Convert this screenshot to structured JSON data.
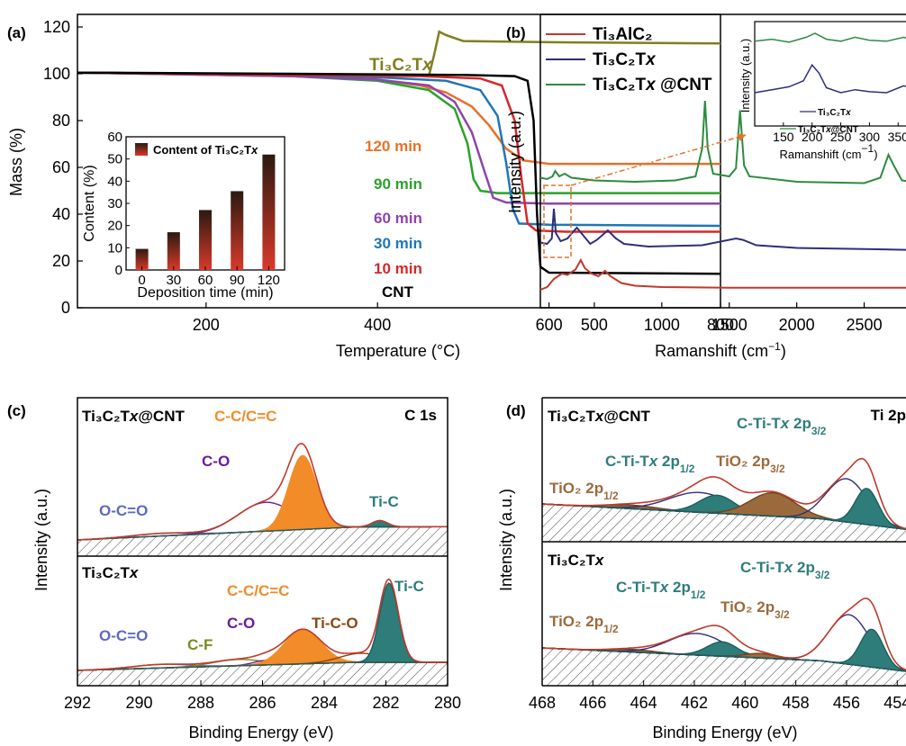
{
  "colors": {
    "ti3alc2": "#c0392b",
    "ti3c2tx": "#2e2f7a",
    "ti3c2tx_cnt": "#2e8b3e",
    "cnt": "#000000",
    "tga_ti3c2tx": "#7f7f1e",
    "m120": "#e8702a",
    "m90": "#2ca02c",
    "m60": "#8e44ad",
    "m30": "#1f77b4",
    "m10": "#d62728",
    "orange_fill": "#f28c28",
    "teal_fill": "#2e7d7a",
    "brown_fill": "#9b6a3c",
    "envelope": "#c0392b",
    "c_o": "#6a1b9a",
    "o_c_o": "#5c6bc0",
    "c_f": "#7a8a1e",
    "ti_c_o": "#8b4513"
  },
  "chart_data": [
    {
      "panel": "(a)",
      "type": "line",
      "xlabel": "Temperature (°C)",
      "ylabel": "Mass (%)",
      "xlim": [
        50,
        800
      ],
      "ylim": [
        0,
        120
      ],
      "xticks": [
        "200",
        "400",
        "600",
        "800"
      ],
      "yticks": [
        "0",
        "20",
        "40",
        "60",
        "80",
        "100",
        "120"
      ],
      "series": [
        {
          "name": "Ti3C2Tx",
          "label": "Ti₃C₂T",
          "label_italic": "x",
          "points": [
            [
              50,
              100.5
            ],
            [
              200,
              100
            ],
            [
              400,
              99.5
            ],
            [
              460,
              99.2
            ],
            [
              466,
              108
            ],
            [
              472,
              118
            ],
            [
              480,
              116.5
            ],
            [
              500,
              114
            ],
            [
              600,
              113.5
            ],
            [
              800,
              113
            ]
          ]
        },
        {
          "name": "120 min",
          "label": "120 min",
          "points": [
            [
              50,
              100.5
            ],
            [
              300,
              99
            ],
            [
              400,
              97.5
            ],
            [
              450,
              95
            ],
            [
              480,
              92
            ],
            [
              510,
              86
            ],
            [
              530,
              78
            ],
            [
              550,
              68
            ],
            [
              570,
              63
            ],
            [
              600,
              61.5
            ],
            [
              800,
              61.5
            ]
          ]
        },
        {
          "name": "90 min",
          "label": "90 min",
          "points": [
            [
              50,
              100.5
            ],
            [
              300,
              99
            ],
            [
              400,
              97
            ],
            [
              460,
              93
            ],
            [
              490,
              85
            ],
            [
              505,
              70
            ],
            [
              512,
              55
            ],
            [
              520,
              50
            ],
            [
              540,
              49
            ],
            [
              600,
              49
            ],
            [
              800,
              49
            ]
          ]
        },
        {
          "name": "60 min",
          "label": "60 min",
          "points": [
            [
              50,
              100.5
            ],
            [
              300,
              99
            ],
            [
              400,
              97.5
            ],
            [
              460,
              95
            ],
            [
              490,
              88
            ],
            [
              510,
              75
            ],
            [
              525,
              58
            ],
            [
              535,
              47
            ],
            [
              550,
              45
            ],
            [
              600,
              44.5
            ],
            [
              800,
              44.5
            ]
          ]
        },
        {
          "name": "30 min",
          "label": "30 min",
          "points": [
            [
              50,
              100.5
            ],
            [
              300,
              99.5
            ],
            [
              400,
              98.5
            ],
            [
              480,
              97
            ],
            [
              520,
              93
            ],
            [
              540,
              82
            ],
            [
              550,
              62
            ],
            [
              558,
              42
            ],
            [
              565,
              36
            ],
            [
              600,
              35.5
            ],
            [
              800,
              35
            ]
          ]
        },
        {
          "name": "10 min",
          "label": "10 min",
          "points": [
            [
              50,
              100.5
            ],
            [
              300,
              99.5
            ],
            [
              450,
              99
            ],
            [
              520,
              98
            ],
            [
              545,
              95
            ],
            [
              560,
              80
            ],
            [
              568,
              55
            ],
            [
              575,
              36
            ],
            [
              585,
              33
            ],
            [
              620,
              32.5
            ],
            [
              800,
              32.5
            ]
          ]
        },
        {
          "name": "CNT",
          "label": "CNT",
          "points": [
            [
              50,
              100.5
            ],
            [
              300,
              100
            ],
            [
              500,
              99.5
            ],
            [
              560,
              99
            ],
            [
              575,
              97
            ],
            [
              582,
              80
            ],
            [
              586,
              40
            ],
            [
              590,
              17.5
            ],
            [
              600,
              15
            ],
            [
              800,
              14.5
            ]
          ]
        }
      ],
      "inset": {
        "type": "bar",
        "xlabel": "Deposition time (min)",
        "ylabel": "Content (%)",
        "legend": "Content of Ti₃C₂T",
        "legend_italic": "x",
        "categories": [
          "0",
          "30",
          "60",
          "90",
          "120"
        ],
        "values": [
          9.5,
          17,
          27,
          35.5,
          52
        ],
        "ylim": [
          0,
          60
        ],
        "yticks": [
          "0",
          "10",
          "20",
          "30",
          "40",
          "50",
          "60"
        ]
      }
    },
    {
      "panel": "(b)",
      "type": "line",
      "xlabel": "Ramanshift (cm⁻¹)",
      "ylabel": "Intensity (a.u.)",
      "xlim": [
        100,
        2850
      ],
      "xticks": [
        "500",
        "1000",
        "1500",
        "2000",
        "2500"
      ],
      "legend": [
        {
          "name": "Ti3AlC2",
          "label": "Ti₃AlC₂"
        },
        {
          "name": "Ti3C2Tx",
          "label": "Ti₃C₂T",
          "italic": "x"
        },
        {
          "name": "Ti3C2Tx@CNT",
          "label": "Ti₃C₂T",
          "italic": "x",
          "suffix": " @CNT"
        }
      ],
      "series": [
        {
          "name": "Ti3AlC2",
          "points": [
            [
              100,
              0
            ],
            [
              150,
              2
            ],
            [
              200,
              8
            ],
            [
              260,
              12
            ],
            [
              300,
              11
            ],
            [
              360,
              15
            ],
            [
              400,
              22
            ],
            [
              430,
              16
            ],
            [
              480,
              12
            ],
            [
              530,
              10
            ],
            [
              580,
              14
            ],
            [
              620,
              10
            ],
            [
              700,
              5
            ],
            [
              800,
              3
            ],
            [
              1000,
              2
            ],
            [
              1500,
              1.5
            ],
            [
              2850,
              1.5
            ]
          ]
        },
        {
          "name": "Ti3C2Tx",
          "points": [
            [
              100,
              35
            ],
            [
              150,
              34
            ],
            [
              185,
              38
            ],
            [
              200,
              60
            ],
            [
              215,
              42
            ],
            [
              250,
              36
            ],
            [
              300,
              38
            ],
            [
              370,
              46
            ],
            [
              420,
              40
            ],
            [
              470,
              34
            ],
            [
              520,
              37
            ],
            [
              600,
              44
            ],
            [
              660,
              38
            ],
            [
              720,
              34
            ],
            [
              900,
              32
            ],
            [
              1300,
              33
            ],
            [
              1550,
              38
            ],
            [
              1600,
              37
            ],
            [
              1700,
              33
            ],
            [
              2000,
              31
            ],
            [
              2600,
              30
            ],
            [
              2850,
              29.5
            ]
          ]
        },
        {
          "name": "Ti3C2Tx@CNT",
          "points": [
            [
              100,
              83
            ],
            [
              150,
              82
            ],
            [
              190,
              84
            ],
            [
              210,
              88
            ],
            [
              240,
              84
            ],
            [
              280,
              86
            ],
            [
              330,
              83
            ],
            [
              500,
              81
            ],
            [
              800,
              80
            ],
            [
              1100,
              81
            ],
            [
              1250,
              84
            ],
            [
              1300,
              105
            ],
            [
              1320,
              140
            ],
            [
              1340,
              105
            ],
            [
              1380,
              86
            ],
            [
              1500,
              84
            ],
            [
              1550,
              90
            ],
            [
              1580,
              133
            ],
            [
              1610,
              92
            ],
            [
              1650,
              84
            ],
            [
              2000,
              80
            ],
            [
              2500,
              79
            ],
            [
              2620,
              83
            ],
            [
              2680,
              100
            ],
            [
              2720,
              92
            ],
            [
              2780,
              81
            ],
            [
              2850,
              80
            ]
          ]
        }
      ],
      "inset": {
        "xlabel": "Ramanshift (cm⁻¹)",
        "ylabel": "Intensity (a.u.)",
        "xlim": [
          100,
          370
        ],
        "xticks": [
          "150",
          "200",
          "250",
          "300",
          "350"
        ],
        "legend": [
          {
            "name": "Ti3C2Tx",
            "label": "Ti₃C₂T",
            "italic": "x"
          },
          {
            "name": "Ti3C2Tx@CNT",
            "label": "Ti₃C₂T",
            "italic": "x",
            "suffix": "@CNT"
          }
        ],
        "series": [
          {
            "name": "Ti3C2Tx@CNT",
            "points": [
              [
                100,
                82
              ],
              [
                130,
                84
              ],
              [
                160,
                81
              ],
              [
                190,
                86
              ],
              [
                205,
                90
              ],
              [
                225,
                84
              ],
              [
                250,
                82
              ],
              [
                275,
                86
              ],
              [
                300,
                83
              ],
              [
                330,
                82
              ],
              [
                360,
                86
              ],
              [
                370,
                84
              ]
            ]
          },
          {
            "name": "Ti3C2Tx",
            "points": [
              [
                100,
                30
              ],
              [
                130,
                33
              ],
              [
                160,
                36
              ],
              [
                185,
                42
              ],
              [
                200,
                58
              ],
              [
                212,
                50
              ],
              [
                225,
                35
              ],
              [
                250,
                30
              ],
              [
                275,
                33
              ],
              [
                300,
                31
              ],
              [
                330,
                30
              ],
              [
                360,
                37
              ],
              [
                370,
                35
              ]
            ]
          }
        ]
      }
    },
    {
      "panel": "(c)",
      "type": "line",
      "title_right": "C 1s",
      "xlabel": "Binding Energy (eV)",
      "ylabel": "Intensity (a.u.)",
      "xlim": [
        292,
        280
      ],
      "xticks": [
        "292",
        "290",
        "288",
        "286",
        "284",
        "282",
        "280"
      ],
      "top_label": "Ti₃C₂T",
      "top_label_italic": "x",
      "top_label_suffix": "@CNT",
      "bottom_label": "Ti₃C₂T",
      "bottom_label_italic": "x",
      "peaks_top": [
        {
          "name": "O-C=O",
          "center": 289.3,
          "height": 3,
          "width": 0.9
        },
        {
          "name": "C-O",
          "center": 285.9,
          "height": 32,
          "width": 0.9
        },
        {
          "name": "C-C/C=C",
          "center": 284.7,
          "height": 82,
          "width": 0.45
        },
        {
          "name": "Ti-C",
          "center": 282.2,
          "height": 7,
          "width": 0.25
        }
      ],
      "peaks_bottom": [
        {
          "name": "O-C=O",
          "center": 289.3,
          "height": 4,
          "width": 0.9
        },
        {
          "name": "C-F",
          "center": 286.8,
          "height": 7,
          "width": 0.8
        },
        {
          "name": "C-O",
          "center": 285.9,
          "height": 5,
          "width": 0.4
        },
        {
          "name": "C-C/C=C",
          "center": 284.7,
          "height": 38,
          "width": 0.6
        },
        {
          "name": "Ti-C-O",
          "center": 282.8,
          "height": 10,
          "width": 0.7
        },
        {
          "name": "Ti-C",
          "center": 281.9,
          "height": 88,
          "width": 0.3
        }
      ]
    },
    {
      "panel": "(d)",
      "type": "line",
      "title_right": "Ti 2p",
      "xlabel": "Binding Energy (eV)",
      "ylabel": "Intensity (a.u.)",
      "xlim": [
        468,
        453.3
      ],
      "xticks": [
        "468",
        "466",
        "464",
        "462",
        "460",
        "458",
        "456",
        "454"
      ],
      "top_label": "Ti₃C₂T",
      "top_label_italic": "x",
      "top_label_suffix": "@CNT",
      "bottom_label": "Ti₃C₂T",
      "bottom_label_italic": "x",
      "peaks_top": [
        {
          "name": "TiO2 2p1/2",
          "center": 464.5,
          "height": 4,
          "width": 1.0
        },
        {
          "name": "C-Ti-Tx 2p1/2",
          "center": 461.8,
          "height": 22,
          "width": 1.2
        },
        {
          "name": "C-Ti-Tx 2p1/2 (teal)",
          "center": 461.1,
          "height": 20,
          "width": 0.7
        },
        {
          "name": "TiO2 2p3/2",
          "center": 458.9,
          "height": 26,
          "width": 0.9
        },
        {
          "name": "C-Ti-Tx 2p3/2",
          "center": 456.0,
          "height": 48,
          "width": 0.8
        },
        {
          "name": "C-Ti-Tx 2p3/2 (teal)",
          "center": 455.2,
          "height": 40,
          "width": 0.45
        }
      ],
      "peaks_bottom": [
        {
          "name": "TiO2 2p1/2",
          "center": 464.5,
          "height": 3,
          "width": 0.9
        },
        {
          "name": "C-Ti-Tx 2p1/2",
          "center": 461.9,
          "height": 24,
          "width": 1.1
        },
        {
          "name": "C-Ti-Tx 2p1/2 (teal)",
          "center": 460.9,
          "height": 16,
          "width": 0.6
        },
        {
          "name": "TiO2 2p3/2",
          "center": 459.4,
          "height": 5,
          "width": 0.6
        },
        {
          "name": "C-Ti-Tx 2p3/2",
          "center": 455.9,
          "height": 55,
          "width": 0.8
        },
        {
          "name": "C-Ti-Tx 2p3/2 (teal)",
          "center": 455.0,
          "height": 42,
          "width": 0.45
        }
      ]
    }
  ],
  "labels": {
    "panel_a": "(a)",
    "panel_b": "(b)",
    "panel_c": "(c)",
    "panel_d": "(d)",
    "tga_ti3c2tx_main": "Ti₃C₂T",
    "tga_ti3c2tx_italic": "x",
    "m120": "120 min",
    "m90": "90 min",
    "m60": "60 min",
    "m30": "30 min",
    "m10": "10 min",
    "cnt": "CNT",
    "c_cc": "C-C/C=C",
    "c_co": "C-O",
    "c_oco": "O-C=O",
    "c_tic": "Ti-C",
    "c_cf": "C-F",
    "c_ticо": "Ti-C-O",
    "d_tio2_12": "TiO₂ 2p",
    "d_tio2_12_sub": "1/2",
    "d_tio2_32": "TiO₂ 2p",
    "d_tio2_32_sub": "3/2",
    "d_ctitx": "C-Ti-T",
    "d_ctitx_italic": "x",
    "d_2p": " 2p",
    "d_12": "1/2",
    "d_32": "3/2"
  }
}
